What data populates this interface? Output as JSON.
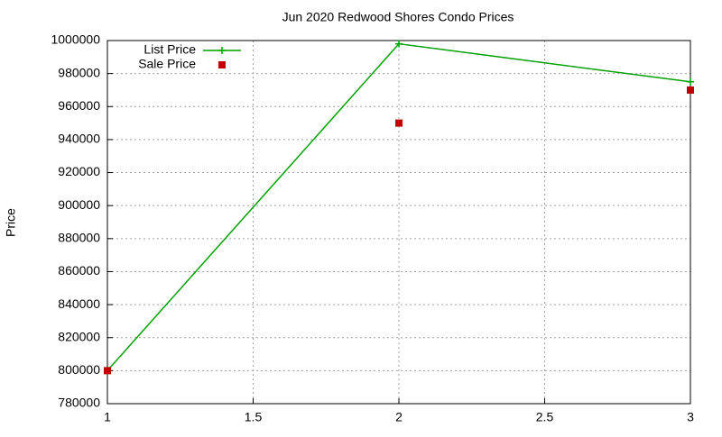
{
  "chart_data": {
    "type": "line",
    "title": "Jun 2020 Redwood Shores Condo Prices",
    "ylabel": "Price",
    "x": [
      1,
      2,
      3
    ],
    "series": [
      {
        "name": "List Price",
        "color": "#00a000",
        "style": "linespoints",
        "values": [
          800000,
          998000,
          975000
        ]
      },
      {
        "name": "Sale Price",
        "color": "#c00000",
        "style": "points",
        "values": [
          800000,
          950000,
          970000
        ]
      }
    ],
    "xlim": [
      1,
      3
    ],
    "xticks": [
      1,
      1.5,
      2,
      2.5,
      3
    ],
    "ylim": [
      780000,
      1000000
    ],
    "yticks": [
      780000,
      800000,
      820000,
      840000,
      860000,
      880000,
      900000,
      920000,
      940000,
      960000,
      980000,
      1000000
    ],
    "grid": true,
    "legend": "top-left"
  }
}
